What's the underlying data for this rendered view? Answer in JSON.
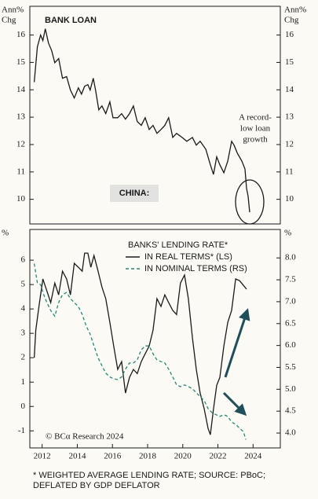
{
  "chart_data": [
    {
      "type": "line",
      "title": "BANK LOAN",
      "y_label": [
        "Ann%",
        "Chg"
      ],
      "y_axis_both_sides": true,
      "annotation": [
        "A record-",
        "low loan",
        "growth"
      ],
      "label_box": "CHINA:",
      "xlim": [
        2011.3,
        2025.55
      ],
      "ylim": [
        9.1,
        17.05
      ],
      "yticks": [
        10,
        11,
        12,
        13,
        14,
        15,
        16
      ],
      "color": "#1a1a1a",
      "x": [
        2011.55,
        2011.73,
        2011.91,
        2012.04,
        2012.18,
        2012.36,
        2012.54,
        2012.72,
        2012.94,
        2013.16,
        2013.39,
        2013.61,
        2013.83,
        2014.06,
        2014.24,
        2014.42,
        2014.6,
        2014.73,
        2014.91,
        2015.04,
        2015.22,
        2015.4,
        2015.62,
        2015.85,
        2016.03,
        2016.3,
        2016.52,
        2016.74,
        2016.97,
        2017.19,
        2017.41,
        2017.64,
        2017.86,
        2018.09,
        2018.31,
        2018.53,
        2018.76,
        2018.98,
        2019.2,
        2019.43,
        2019.65,
        2019.96,
        2020.23,
        2020.55,
        2020.77,
        2020.99,
        2021.31,
        2021.57,
        2021.75,
        2021.93,
        2022.11,
        2022.34,
        2022.56,
        2022.78,
        2022.92,
        2023.1,
        2023.36,
        2023.54,
        2023.63,
        2023.72,
        2023.81
      ],
      "values": [
        14.28,
        15.57,
        16.0,
        15.8,
        16.23,
        15.71,
        15.43,
        14.99,
        15.14,
        14.42,
        14.48,
        13.99,
        13.7,
        14.07,
        13.84,
        14.13,
        14.19,
        13.99,
        14.42,
        13.99,
        13.27,
        13.41,
        13.13,
        13.56,
        12.98,
        12.98,
        13.13,
        12.93,
        13.13,
        13.41,
        12.84,
        12.7,
        12.98,
        12.55,
        12.7,
        12.41,
        12.55,
        12.7,
        12.98,
        12.26,
        12.41,
        12.26,
        12.12,
        12.26,
        11.98,
        12.12,
        11.83,
        11.26,
        10.91,
        11.55,
        11.26,
        10.97,
        11.4,
        12.12,
        11.98,
        11.69,
        11.4,
        11.11,
        10.4,
        10.11,
        9.53
      ]
    },
    {
      "type": "line",
      "y_label": [
        "%"
      ],
      "y2_label": [
        "%"
      ],
      "legend_title": "BANKS' LENDING RATE*",
      "credit": "© BCα Research 2024",
      "xlim": [
        2011.3,
        2025.55
      ],
      "xticks": [
        2012,
        2014,
        2016,
        2018,
        2020,
        2022,
        2024
      ],
      "ylim": [
        -1.7,
        7.26
      ],
      "yticks": [
        -1,
        0,
        1,
        2,
        3,
        4,
        5,
        6
      ],
      "y2lim": [
        3.66,
        8.65
      ],
      "y2ticks": [
        {
          "value": 4,
          "label": "4.0"
        },
        {
          "value": 4.5,
          "label": "4.5"
        },
        {
          "value": 5,
          "label": "5.0"
        },
        {
          "value": 5.5,
          "label": "5.5"
        },
        {
          "value": 6,
          "label": "6.0"
        },
        {
          "value": 6.5,
          "label": "6.5"
        },
        {
          "value": 7,
          "label": "7.0"
        },
        {
          "value": 7.5,
          "label": "7.5"
        },
        {
          "value": 8,
          "label": "8.0"
        }
      ],
      "series": [
        {
          "name": "IN REAL TERMS* (LS)",
          "color": "#1a1a1a",
          "dashed": false,
          "x": [
            2011.55,
            2011.64,
            2011.82,
            2012.04,
            2012.27,
            2012.49,
            2012.72,
            2012.94,
            2013.16,
            2013.39,
            2013.61,
            2013.83,
            2014.06,
            2014.28,
            2014.42,
            2014.6,
            2014.77,
            2014.95,
            2015.18,
            2015.4,
            2015.62,
            2015.85,
            2016.07,
            2016.3,
            2016.52,
            2016.74,
            2016.97,
            2017.19,
            2017.41,
            2017.64,
            2017.86,
            2018.09,
            2018.31,
            2018.53,
            2018.76,
            2018.98,
            2019.2,
            2019.43,
            2019.65,
            2019.87,
            2020.1,
            2020.32,
            2020.55,
            2020.77,
            2020.99,
            2021.22,
            2021.44,
            2021.57,
            2021.75,
            2021.93,
            2022.11,
            2022.34,
            2022.56,
            2022.78,
            2023.01,
            2023.23,
            2023.45,
            2023.63
          ],
          "values": [
            2.0,
            3.13,
            4.1,
            5.23,
            4.74,
            4.26,
            5.06,
            4.58,
            5.55,
            5.23,
            4.58,
            5.87,
            5.71,
            5.55,
            6.29,
            6.29,
            5.71,
            6.19,
            5.55,
            4.9,
            4.42,
            3.45,
            2.48,
            1.52,
            1.84,
            0.55,
            1.19,
            1.52,
            1.35,
            1.84,
            2.16,
            2.48,
            3.13,
            4.42,
            4.1,
            4.58,
            4.26,
            3.94,
            3.77,
            5.06,
            5.39,
            4.42,
            2.81,
            1.52,
            0.55,
            -0.1,
            -0.9,
            -1.16,
            -0.1,
            0.87,
            1.19,
            2.48,
            3.45,
            3.94,
            5.23,
            5.16,
            4.97,
            4.81
          ]
        },
        {
          "name": "IN NOMINAL TERMS (RS)",
          "color": "#1f8a78",
          "dashed": true,
          "axis": "y2",
          "x": [
            2011.55,
            2011.73,
            2011.91,
            2012.09,
            2012.27,
            2012.49,
            2012.72,
            2012.94,
            2013.16,
            2013.39,
            2013.61,
            2013.83,
            2014.06,
            2014.28,
            2014.51,
            2014.73,
            2014.95,
            2015.18,
            2015.4,
            2015.62,
            2015.85,
            2016.07,
            2016.3,
            2016.52,
            2016.74,
            2016.97,
            2017.19,
            2017.41,
            2017.64,
            2017.86,
            2018.09,
            2018.31,
            2018.53,
            2018.76,
            2018.98,
            2019.2,
            2019.43,
            2019.65,
            2019.87,
            2020.1,
            2020.32,
            2020.55,
            2020.77,
            2020.99,
            2021.22,
            2021.44,
            2021.66,
            2021.89,
            2022.11,
            2022.34,
            2022.56,
            2022.78,
            2023.01,
            2023.23,
            2023.45,
            2023.59
          ],
          "values": [
            7.87,
            7.43,
            7.39,
            7.16,
            6.98,
            6.8,
            6.67,
            6.98,
            7.16,
            7.21,
            7.07,
            6.98,
            6.89,
            6.71,
            6.44,
            6.26,
            5.99,
            5.72,
            5.54,
            5.37,
            5.28,
            5.24,
            5.22,
            5.28,
            5.46,
            5.6,
            5.6,
            5.67,
            5.9,
            5.99,
            5.99,
            5.81,
            5.67,
            5.63,
            5.6,
            5.46,
            5.28,
            5.1,
            5.06,
            5.1,
            5.06,
            5.01,
            4.92,
            4.83,
            4.74,
            4.56,
            4.47,
            4.42,
            4.38,
            4.42,
            4.38,
            4.25,
            4.2,
            4.11,
            4.03,
            3.85
          ]
        }
      ]
    }
  ],
  "footnote": [
    "* WEIGHTED AVERAGE LENDING RATE; SOURCE: PBoC;",
    "DEFLATED BY GDP DEFLATOR"
  ]
}
